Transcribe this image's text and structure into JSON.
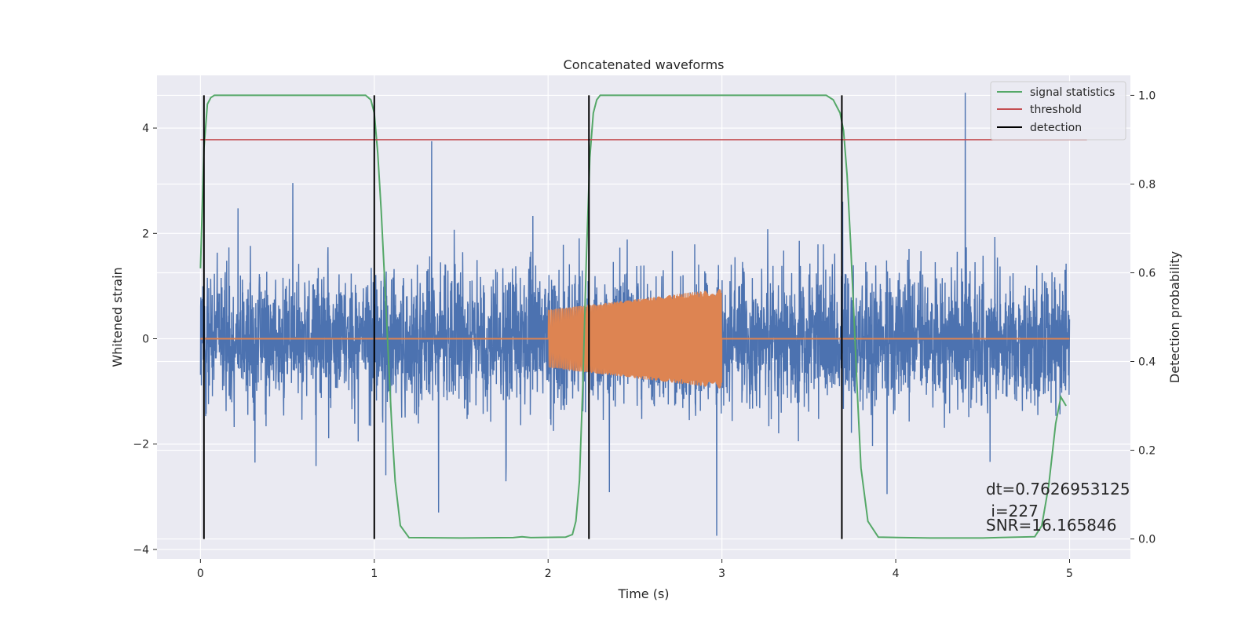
{
  "chart_data": {
    "type": "line",
    "title": "Concatenated waveforms",
    "xlabel": "Time (s)",
    "ylabel": "Whitened strain",
    "y2label": "Detection probability",
    "xlim": [
      -0.25,
      5.35
    ],
    "ylim": [
      -4.18,
      5.0
    ],
    "y2lim": [
      -0.045,
      1.045
    ],
    "xticks": [
      0,
      1,
      2,
      3,
      4,
      5
    ],
    "yticks": [
      -4,
      -2,
      0,
      2,
      4
    ],
    "y2ticks": [
      0.0,
      0.2,
      0.4,
      0.6,
      0.8,
      1.0
    ],
    "grid": true,
    "legend_position": "top-right",
    "colors": {
      "strain": "#4c72b0",
      "template": "#dd8452",
      "signal_statistics": "#55a868",
      "threshold": "#c44e52",
      "detection": "#000000",
      "plot_bg": "#eaeaf2",
      "grid": "#ffffff"
    },
    "legend": [
      "signal statistics",
      "threshold",
      "detection"
    ],
    "series": [
      {
        "name": "signal statistics",
        "axis": "right",
        "x": [
          0.0,
          0.02,
          0.04,
          0.06,
          0.08,
          0.1,
          0.2,
          0.5,
          0.8,
          0.9,
          0.95,
          0.98,
          1.0,
          1.02,
          1.04,
          1.06,
          1.08,
          1.1,
          1.12,
          1.15,
          1.2,
          1.5,
          1.8,
          1.85,
          1.9,
          2.1,
          2.14,
          2.16,
          2.18,
          2.2,
          2.22,
          2.24,
          2.26,
          2.28,
          2.3,
          2.35,
          2.5,
          3.0,
          3.5,
          3.6,
          3.64,
          3.68,
          3.7,
          3.72,
          3.74,
          3.76,
          3.78,
          3.8,
          3.84,
          3.9,
          4.2,
          4.5,
          4.8,
          4.84,
          4.88,
          4.92,
          4.95,
          4.98
        ],
        "y": [
          0.61,
          0.88,
          0.98,
          0.995,
          1.0,
          1.0,
          1.0,
          1.0,
          1.0,
          1.0,
          1.0,
          0.99,
          0.96,
          0.87,
          0.74,
          0.58,
          0.42,
          0.26,
          0.13,
          0.03,
          0.003,
          0.002,
          0.003,
          0.005,
          0.003,
          0.004,
          0.01,
          0.04,
          0.13,
          0.35,
          0.63,
          0.86,
          0.96,
          0.99,
          1.0,
          1.0,
          1.0,
          1.0,
          1.0,
          1.0,
          0.99,
          0.96,
          0.92,
          0.82,
          0.67,
          0.5,
          0.32,
          0.16,
          0.04,
          0.004,
          0.002,
          0.002,
          0.005,
          0.03,
          0.12,
          0.26,
          0.32,
          0.3
        ]
      },
      {
        "name": "threshold",
        "axis": "right",
        "x": [
          0.0,
          5.1
        ],
        "y": [
          0.9,
          0.9
        ]
      },
      {
        "name": "detection",
        "axis": "right",
        "x": [
          0.02,
          1.0,
          2.235,
          3.69
        ],
        "y_range": [
          0.0,
          1.0
        ]
      }
    ],
    "strain": {
      "x_range": [
        0.0,
        5.0
      ],
      "typical_range": [
        -2.0,
        2.0
      ],
      "peak_min": -3.74,
      "peak_max": 4.67
    },
    "template": {
      "x_range": [
        2.0,
        3.0
      ],
      "amplitude_start": 0.55,
      "amplitude_end": 0.95,
      "baseline": 0.0
    },
    "annotations": {
      "line1": "dt=0.7626953125",
      "line2": " i=227",
      "line3": "SNR=16.165846"
    }
  }
}
